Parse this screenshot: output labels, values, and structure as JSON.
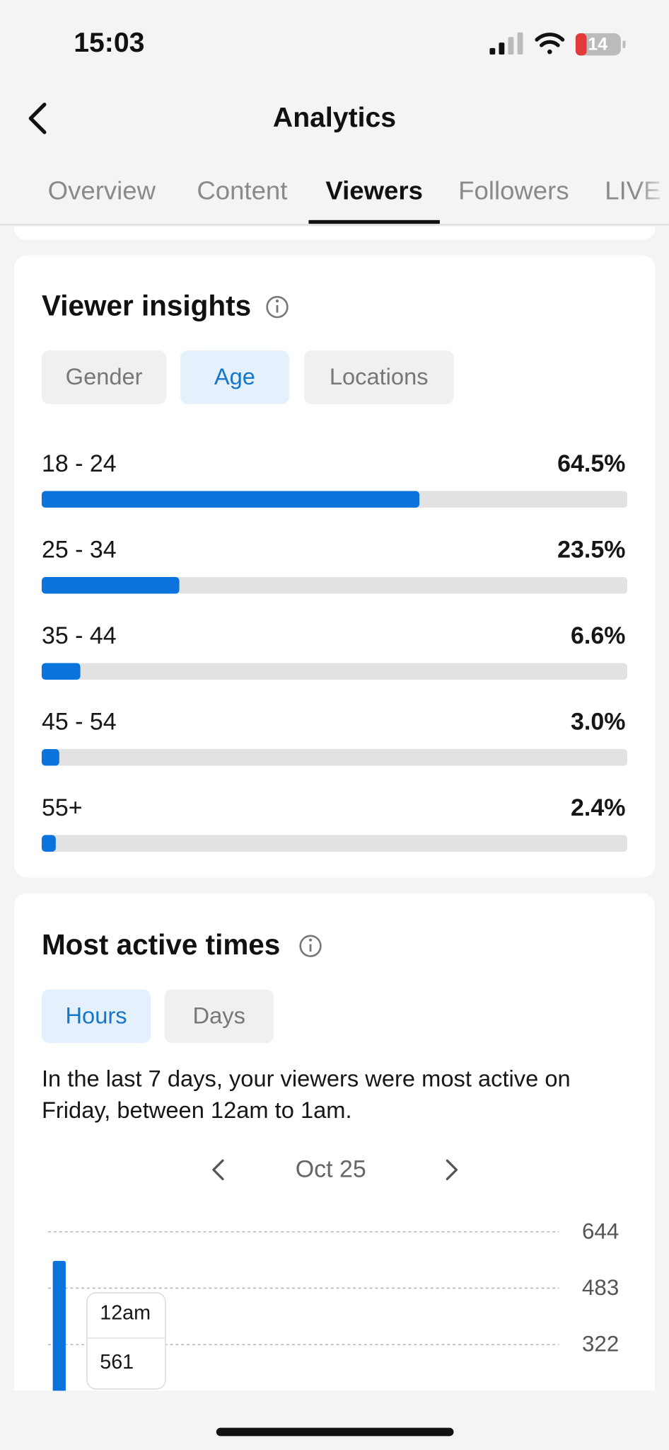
{
  "status_bar": {
    "time": "15:03",
    "battery": "14"
  },
  "header": {
    "title": "Analytics"
  },
  "tabs": [
    "Overview",
    "Content",
    "Viewers",
    "Followers",
    "LIVE"
  ],
  "active_tab": "Viewers",
  "viewer_insights": {
    "title": "Viewer insights",
    "filters": [
      "Gender",
      "Age",
      "Locations"
    ],
    "active_filter": "Age",
    "xlim": [
      0,
      100
    ],
    "color": "#0a74dc",
    "rows": [
      {
        "label": "18 - 24",
        "value": 64.5,
        "value_label": "64.5%"
      },
      {
        "label": "25 - 34",
        "value": 23.5,
        "value_label": "23.5%"
      },
      {
        "label": "35 - 44",
        "value": 6.6,
        "value_label": "6.6%"
      },
      {
        "label": "45 - 54",
        "value": 3.0,
        "value_label": "3.0%"
      },
      {
        "label": "55+",
        "value": 2.4,
        "value_label": "2.4%"
      }
    ]
  },
  "most_active_times": {
    "title": "Most active times",
    "filters": [
      "Hours",
      "Days"
    ],
    "active_filter": "Hours",
    "summary": "In the last 7 days, your viewers were most active on Friday, between 12am to 1am.",
    "date": "Oct 25"
  },
  "chart_data": {
    "type": "bar",
    "categories": [
      "12am"
    ],
    "values": [
      561
    ],
    "ylim": [
      0,
      644
    ],
    "yticks": [
      322,
      483,
      644
    ],
    "grid": true,
    "color": "#0a74dc"
  }
}
